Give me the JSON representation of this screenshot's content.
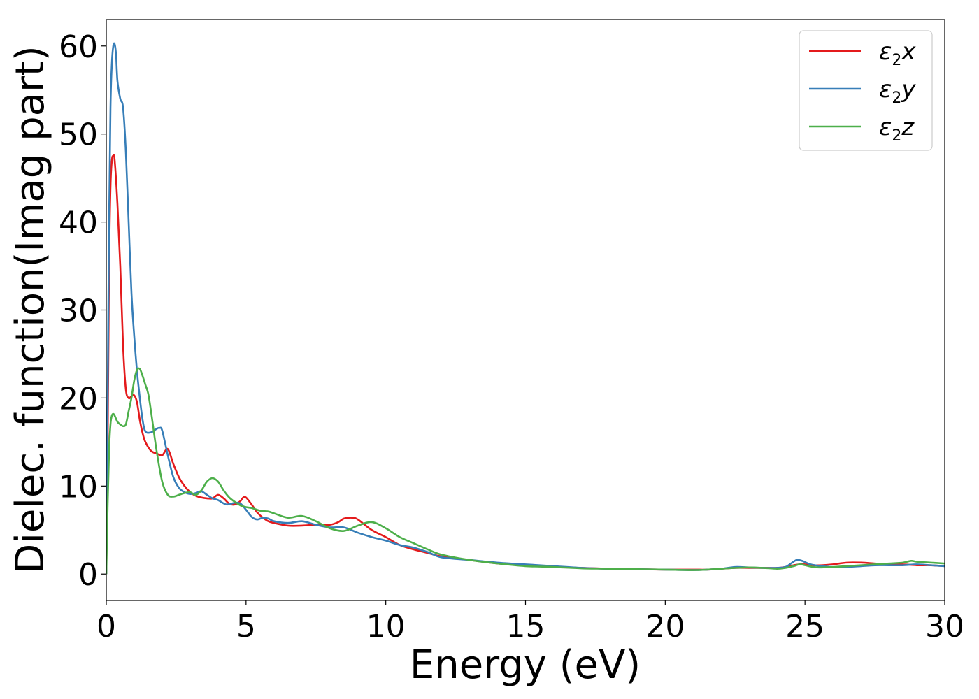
{
  "chart_data": {
    "type": "line",
    "title": "",
    "xlabel": "Energy (eV)",
    "ylabel": "Dielec. function(Imag part)",
    "xlim": [
      0,
      30
    ],
    "ylim": [
      -3,
      63
    ],
    "xticks": [
      0,
      5,
      10,
      15,
      20,
      25,
      30
    ],
    "yticks": [
      0,
      10,
      20,
      30,
      40,
      50,
      60
    ],
    "grid": false,
    "legend_position": "top-right",
    "series": [
      {
        "name": "ε2x",
        "legend_base": "ε",
        "legend_sub": "2",
        "legend_tail": "x",
        "color": "#e41a1c",
        "x": [
          0,
          0.05,
          0.1,
          0.15,
          0.2,
          0.25,
          0.3,
          0.4,
          0.5,
          0.6,
          0.7,
          0.8,
          0.9,
          1.0,
          1.1,
          1.2,
          1.3,
          1.4,
          1.6,
          1.8,
          2.0,
          2.2,
          2.4,
          2.6,
          2.8,
          3.0,
          3.2,
          3.4,
          3.6,
          3.8,
          4.0,
          4.2,
          4.4,
          4.6,
          4.8,
          4.9,
          5.0,
          5.2,
          5.4,
          5.6,
          5.8,
          6.0,
          6.5,
          7.0,
          7.5,
          8.0,
          8.3,
          8.5,
          8.8,
          9.0,
          9.5,
          10.0,
          10.5,
          11.0,
          11.5,
          12.0,
          13.0,
          14.0,
          15.0,
          16.0,
          17.0,
          18.0,
          19.0,
          20.0,
          21.0,
          21.5,
          22.0,
          22.5,
          23.0,
          23.5,
          24.0,
          24.3,
          24.6,
          24.8,
          25.0,
          25.3,
          25.6,
          26.0,
          26.5,
          27.0,
          27.5,
          28.0,
          28.5,
          29.0,
          29.5,
          30.0
        ],
        "y": [
          0,
          15,
          35,
          44,
          47,
          47.5,
          47,
          42,
          35,
          26,
          21,
          20,
          20.2,
          20.3,
          19.5,
          17.5,
          16,
          15,
          14,
          13.7,
          13.5,
          14.2,
          12.5,
          11,
          10,
          9.3,
          8.9,
          8.7,
          8.6,
          8.6,
          9.0,
          8.6,
          8.0,
          7.9,
          8.3,
          8.7,
          8.7,
          7.9,
          7.0,
          6.4,
          6.0,
          5.8,
          5.5,
          5.5,
          5.6,
          5.6,
          5.9,
          6.3,
          6.4,
          6.2,
          5.0,
          4.2,
          3.3,
          2.8,
          2.4,
          2.0,
          1.6,
          1.2,
          1.0,
          0.8,
          0.7,
          0.6,
          0.55,
          0.5,
          0.5,
          0.5,
          0.6,
          0.7,
          0.7,
          0.7,
          0.7,
          0.8,
          1.0,
          1.1,
          1.1,
          1.0,
          1.0,
          1.1,
          1.3,
          1.3,
          1.2,
          1.1,
          1.1,
          1.0,
          1.0,
          0.9
        ]
      },
      {
        "name": "ε2y",
        "legend_base": "ε",
        "legend_sub": "2",
        "legend_tail": "y",
        "color": "#377eb8",
        "x": [
          0,
          0.05,
          0.1,
          0.15,
          0.2,
          0.25,
          0.3,
          0.35,
          0.4,
          0.5,
          0.6,
          0.7,
          0.8,
          0.9,
          1.0,
          1.1,
          1.2,
          1.3,
          1.4,
          1.6,
          1.8,
          1.9,
          2.0,
          2.2,
          2.4,
          2.6,
          2.8,
          3.0,
          3.2,
          3.4,
          3.6,
          3.8,
          4.0,
          4.3,
          4.6,
          4.8,
          5.0,
          5.2,
          5.4,
          5.6,
          5.8,
          6.0,
          6.5,
          7.0,
          7.5,
          8.0,
          8.5,
          9.0,
          9.5,
          10.0,
          10.5,
          11.0,
          11.5,
          12.0,
          13.0,
          14.0,
          15.0,
          16.0,
          17.0,
          18.0,
          19.0,
          20.0,
          21.0,
          21.5,
          22.0,
          22.5,
          23.0,
          23.5,
          24.0,
          24.3,
          24.5,
          24.7,
          24.9,
          25.2,
          25.6,
          26.0,
          26.5,
          27.0,
          27.5,
          28.0,
          28.5,
          29.0,
          29.5,
          30.0
        ],
        "y": [
          0,
          20,
          40,
          53,
          58,
          60,
          60.2,
          59,
          56,
          54,
          53,
          48,
          40,
          32,
          27,
          23,
          20,
          17.5,
          16.2,
          16.1,
          16.5,
          16.6,
          16.3,
          13.5,
          11,
          9.8,
          9.3,
          9.1,
          9.2,
          9.4,
          9.0,
          8.6,
          8.4,
          7.9,
          8.1,
          8.0,
          7.3,
          6.5,
          6.2,
          6.4,
          6.3,
          6.0,
          5.8,
          6.0,
          5.6,
          5.3,
          5.3,
          4.7,
          4.2,
          3.8,
          3.3,
          3.0,
          2.5,
          1.9,
          1.6,
          1.3,
          1.1,
          0.9,
          0.7,
          0.6,
          0.55,
          0.5,
          0.45,
          0.5,
          0.6,
          0.8,
          0.75,
          0.7,
          0.7,
          0.8,
          1.2,
          1.6,
          1.5,
          1.1,
          0.9,
          0.8,
          0.8,
          0.9,
          1.0,
          1.0,
          1.0,
          1.1,
          1.0,
          0.9
        ]
      },
      {
        "name": "ε2z",
        "legend_base": "ε",
        "legend_sub": "2",
        "legend_tail": "z",
        "color": "#4daf4a",
        "x": [
          0,
          0.05,
          0.1,
          0.15,
          0.2,
          0.25,
          0.3,
          0.4,
          0.5,
          0.6,
          0.7,
          0.8,
          0.9,
          1.0,
          1.1,
          1.2,
          1.3,
          1.4,
          1.5,
          1.6,
          1.8,
          2.0,
          2.2,
          2.4,
          2.6,
          2.8,
          3.0,
          3.2,
          3.4,
          3.6,
          3.8,
          4.0,
          4.2,
          4.4,
          4.6,
          4.8,
          5.0,
          5.2,
          5.5,
          5.8,
          6.0,
          6.5,
          7.0,
          7.5,
          8.0,
          8.5,
          9.0,
          9.5,
          10.0,
          10.5,
          11.0,
          11.5,
          12.0,
          13.0,
          14.0,
          15.0,
          16.0,
          17.0,
          18.0,
          19.0,
          20.0,
          21.0,
          21.5,
          22.0,
          22.5,
          23.0,
          23.5,
          24.0,
          24.3,
          24.6,
          24.8,
          25.0,
          25.3,
          25.6,
          26.0,
          26.5,
          27.0,
          27.5,
          28.0,
          28.5,
          28.8,
          29.0,
          29.5,
          30.0
        ],
        "y": [
          0,
          8,
          14,
          17,
          18,
          18.2,
          18,
          17.3,
          17,
          16.8,
          17,
          18.5,
          20,
          22,
          23.2,
          23.3,
          22.5,
          21.5,
          20.5,
          18.5,
          14,
          10.5,
          9,
          8.8,
          9.0,
          9.2,
          9.3,
          9.0,
          9.5,
          10.5,
          10.9,
          10.5,
          9.5,
          8.7,
          8.2,
          7.8,
          7.6,
          7.5,
          7.2,
          7.1,
          6.9,
          6.4,
          6.6,
          6.0,
          5.2,
          4.9,
          5.5,
          5.9,
          5.2,
          4.2,
          3.5,
          2.8,
          2.2,
          1.6,
          1.2,
          0.9,
          0.8,
          0.65,
          0.6,
          0.55,
          0.5,
          0.45,
          0.5,
          0.6,
          0.7,
          0.75,
          0.7,
          0.6,
          0.7,
          0.9,
          1.1,
          1.0,
          0.8,
          0.75,
          0.8,
          0.9,
          1.0,
          1.1,
          1.2,
          1.3,
          1.5,
          1.4,
          1.3,
          1.2
        ]
      }
    ]
  }
}
